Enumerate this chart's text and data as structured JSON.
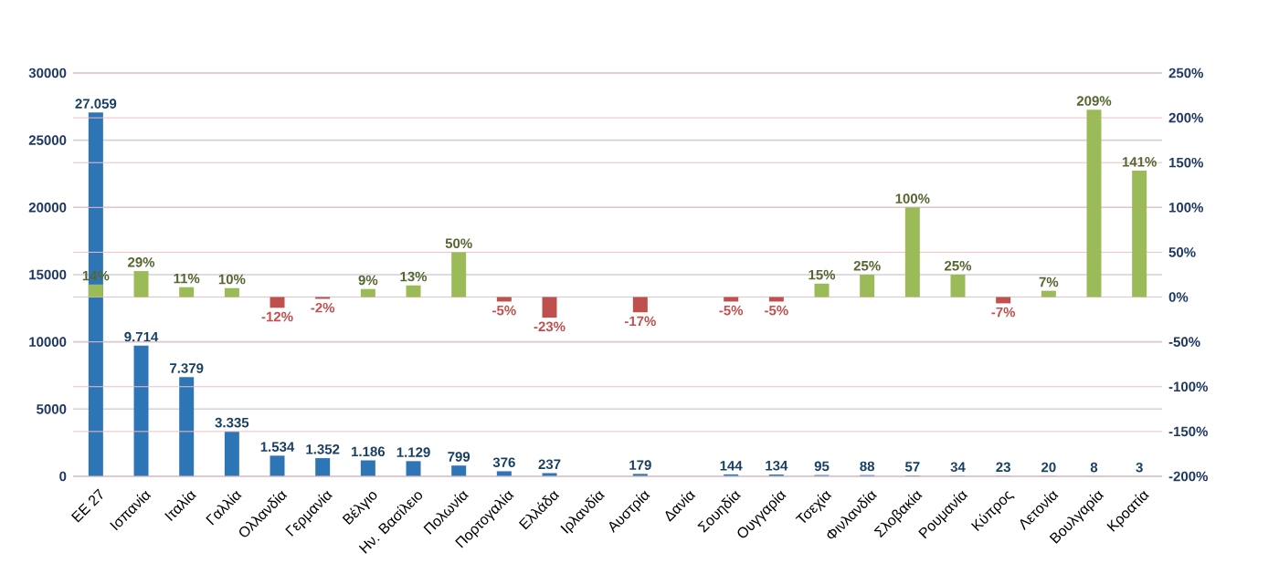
{
  "chart_data": {
    "type": "bar",
    "categories": [
      "ΕΕ 27",
      "Ισπανία",
      "Ιταλία",
      "Γαλλία",
      "Ολλανδία",
      "Γερμανία",
      "Βέλγιο",
      "Ην. Βασίλειο",
      "Πολωνία",
      "Πορτογαλία",
      "Ελλάδα",
      "Ιρλανδία",
      "Αυστρία",
      "Δανία",
      "Σουηδία",
      "Ουγγαρία",
      "Τσεχία",
      "Φινλανδία",
      "Σλοβακία",
      "Ρουμανία",
      "Κύπρος",
      "Λετονία",
      "Βουλγαρία",
      "Κροατία"
    ],
    "series": [
      {
        "color": "#2e75b6",
        "values": [
          27059,
          9714,
          7379,
          3335,
          1534,
          1352,
          1186,
          1129,
          799,
          376,
          237,
          null,
          179,
          null,
          144,
          134,
          95,
          88,
          57,
          34,
          23,
          20,
          8,
          3
        ],
        "value_labels": [
          "27.059",
          "9.714",
          "7.379",
          "3.335",
          "1.534",
          "1.352",
          "1.186",
          "1.129",
          "799",
          "376",
          "237",
          null,
          "179",
          null,
          "144",
          "134",
          "95",
          "88",
          "57",
          "34",
          "23",
          "20",
          "8",
          "3"
        ]
      },
      {
        "axis": "y2",
        "values": [
          14,
          29,
          11,
          10,
          -12,
          -2,
          9,
          13,
          50,
          -5,
          -23,
          null,
          -17,
          null,
          -5,
          -5,
          15,
          25,
          100,
          25,
          -7,
          7,
          209,
          141
        ],
        "colors": [
          "#9bbb59",
          "#9bbb59",
          "#9bbb59",
          "#9bbb59",
          "#c0504d",
          "#c0504d",
          "#9bbb59",
          "#9bbb59",
          "#9bbb59",
          "#c0504d",
          "#c0504d",
          null,
          "#c0504d",
          null,
          "#c0504d",
          "#c0504d",
          "#9bbb59",
          "#9bbb59",
          "#9bbb59",
          "#9bbb59",
          "#c0504d",
          "#9bbb59",
          "#9bbb59",
          "#9bbb59"
        ],
        "value_labels": [
          "14%",
          "29%",
          "11%",
          "10%",
          "-12%",
          "-2%",
          "9%",
          "13%",
          "50%",
          "-5%",
          "-23%",
          null,
          "-17%",
          null,
          "-5%",
          "-5%",
          "15%",
          "25%",
          "100%",
          "25%",
          "-7%",
          "7%",
          "209%",
          "141%"
        ]
      }
    ],
    "ylim": [
      0,
      30000
    ],
    "yticks": [
      0,
      5000,
      10000,
      15000,
      20000,
      25000,
      30000
    ],
    "y2lim": [
      -200,
      250
    ],
    "y2ticks": [
      {
        "value": -200,
        "label": "-200%"
      },
      {
        "value": -150,
        "label": "-150%"
      },
      {
        "value": -100,
        "label": "-100%"
      },
      {
        "value": -50,
        "label": "-50%"
      },
      {
        "value": 0,
        "label": "0%"
      },
      {
        "value": 50,
        "label": "50%"
      },
      {
        "value": 100,
        "label": "100%"
      },
      {
        "value": 150,
        "label": "150%"
      },
      {
        "value": 200,
        "label": "200%"
      },
      {
        "value": 250,
        "label": "250%"
      }
    ],
    "grid": true
  }
}
